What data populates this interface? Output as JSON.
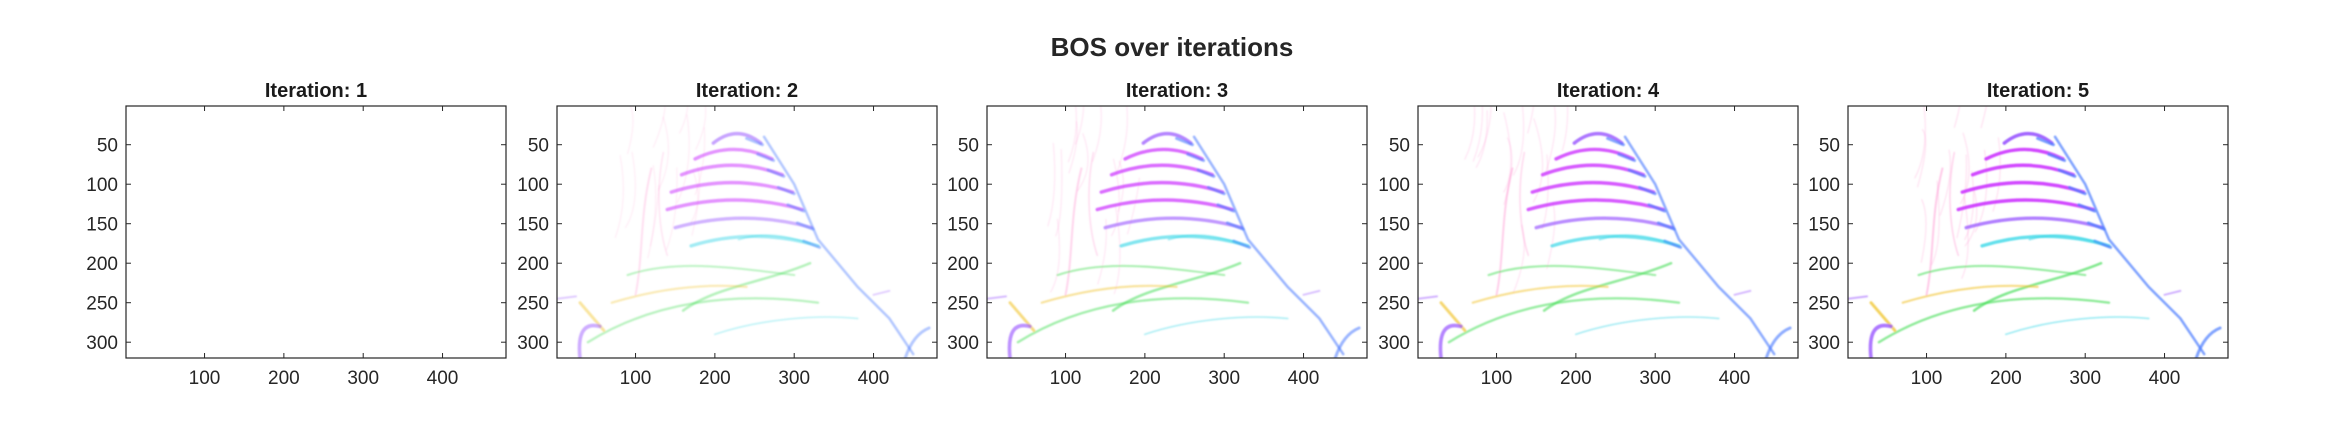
{
  "figure": {
    "title": "BOS over iterations"
  },
  "chart_data": [
    {
      "type": "heatmap",
      "title": "Iteration: 1",
      "xlabel": "",
      "ylabel": "",
      "xlim": [
        1,
        480
      ],
      "ylim": [
        320,
        1
      ],
      "xticks": [
        100,
        200,
        300,
        400
      ],
      "yticks": [
        50,
        100,
        150,
        200,
        250,
        300
      ],
      "y_reversed": true,
      "intensity": 0,
      "note_content": "blank white image"
    },
    {
      "type": "heatmap",
      "title": "Iteration: 2",
      "xlabel": "",
      "ylabel": "",
      "xlim": [
        1,
        480
      ],
      "ylim": [
        320,
        1
      ],
      "xticks": [
        100,
        200,
        300,
        400
      ],
      "yticks": [
        50,
        100,
        150,
        200,
        250,
        300
      ],
      "y_reversed": true,
      "intensity": 0.6
    },
    {
      "type": "heatmap",
      "title": "Iteration: 3",
      "xlabel": "",
      "ylabel": "",
      "xlim": [
        1,
        480
      ],
      "ylim": [
        320,
        1
      ],
      "xticks": [
        100,
        200,
        300,
        400
      ],
      "yticks": [
        50,
        100,
        150,
        200,
        250,
        300
      ],
      "y_reversed": true,
      "intensity": 0.8
    },
    {
      "type": "heatmap",
      "title": "Iteration: 4",
      "xlabel": "",
      "ylabel": "",
      "xlim": [
        1,
        480
      ],
      "ylim": [
        320,
        1
      ],
      "xticks": [
        100,
        200,
        300,
        400
      ],
      "yticks": [
        50,
        100,
        150,
        200,
        250,
        300
      ],
      "y_reversed": true,
      "intensity": 0.9
    },
    {
      "type": "heatmap",
      "title": "Iteration: 5",
      "xlabel": "",
      "ylabel": "",
      "xlim": [
        1,
        480
      ],
      "ylim": [
        320,
        1
      ],
      "xticks": [
        100,
        200,
        300,
        400
      ],
      "yticks": [
        50,
        100,
        150,
        200,
        250,
        300
      ],
      "y_reversed": true,
      "intensity": 1.0
    }
  ],
  "colors": {
    "magenta": "#cc33ff",
    "violet": "#9955ff",
    "blue": "#4d7dff",
    "cyan": "#33d6e6",
    "green": "#44dd55",
    "yellow": "#f0c020",
    "pink": "#ff88cc",
    "axis": "#262626"
  }
}
